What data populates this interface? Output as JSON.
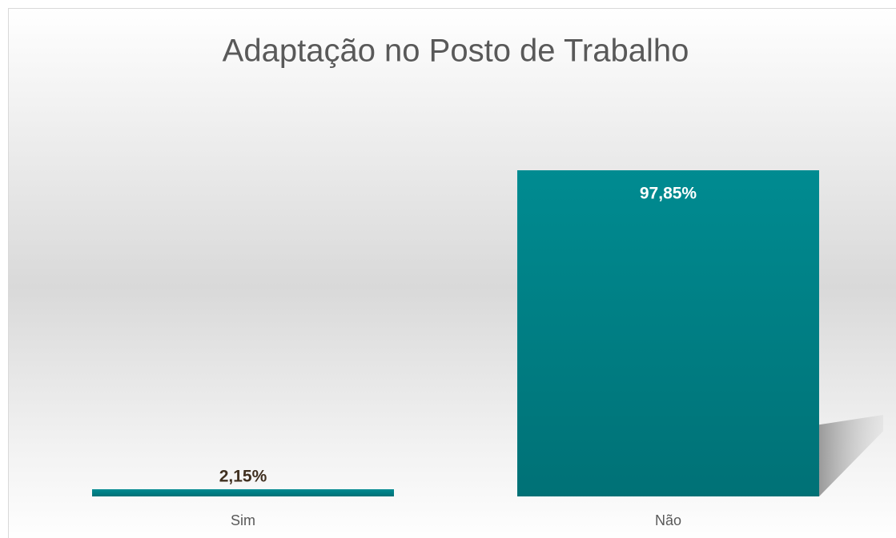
{
  "chart_data": {
    "type": "bar",
    "title": "Adaptação no Posto de Trabalho",
    "categories": [
      "Sim",
      "Não"
    ],
    "values": [
      2.15,
      97.85
    ],
    "value_labels": [
      "2,15%",
      "97,85%"
    ],
    "color": "#00838a"
  }
}
